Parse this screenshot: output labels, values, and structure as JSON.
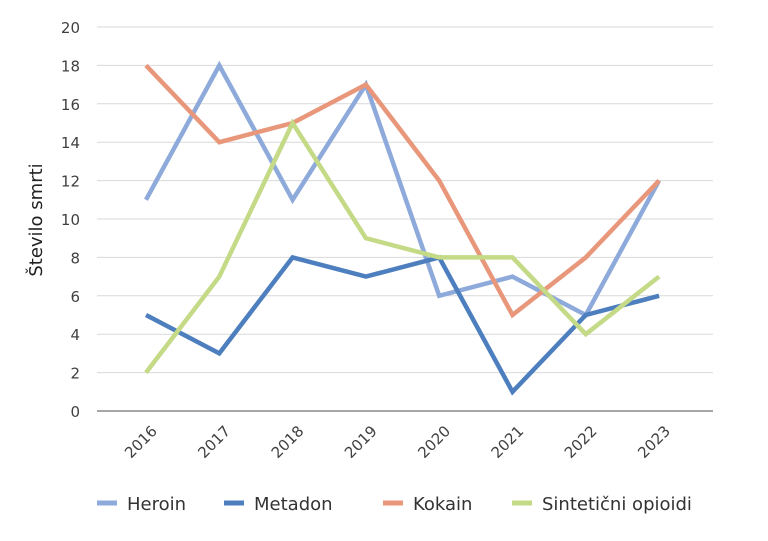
{
  "chart_data": {
    "type": "line",
    "title": "",
    "xlabel": "",
    "ylabel": "Število smrti",
    "categories": [
      "2016",
      "2017",
      "2018",
      "2019",
      "2020",
      "2021",
      "2022",
      "2023"
    ],
    "ylim": [
      0,
      20
    ],
    "yticks": [
      0,
      2,
      4,
      6,
      8,
      10,
      12,
      14,
      16,
      18,
      20
    ],
    "grid": true,
    "legend_position": "bottom",
    "series": [
      {
        "name": "Heroin",
        "color": "#8eaadb",
        "values": [
          11,
          18,
          11,
          17,
          6,
          7,
          5,
          12
        ]
      },
      {
        "name": "Metadon",
        "color": "#4d7fbf",
        "values": [
          5,
          3,
          8,
          7,
          8,
          1,
          5,
          6
        ]
      },
      {
        "name": "Kokain",
        "color": "#e8977b",
        "values": [
          18,
          14,
          15,
          17,
          12,
          5,
          8,
          12
        ]
      },
      {
        "name": "Sintetični opioidi",
        "color": "#c4da86",
        "values": [
          2,
          7,
          15,
          9,
          8,
          8,
          4,
          7
        ]
      }
    ]
  }
}
